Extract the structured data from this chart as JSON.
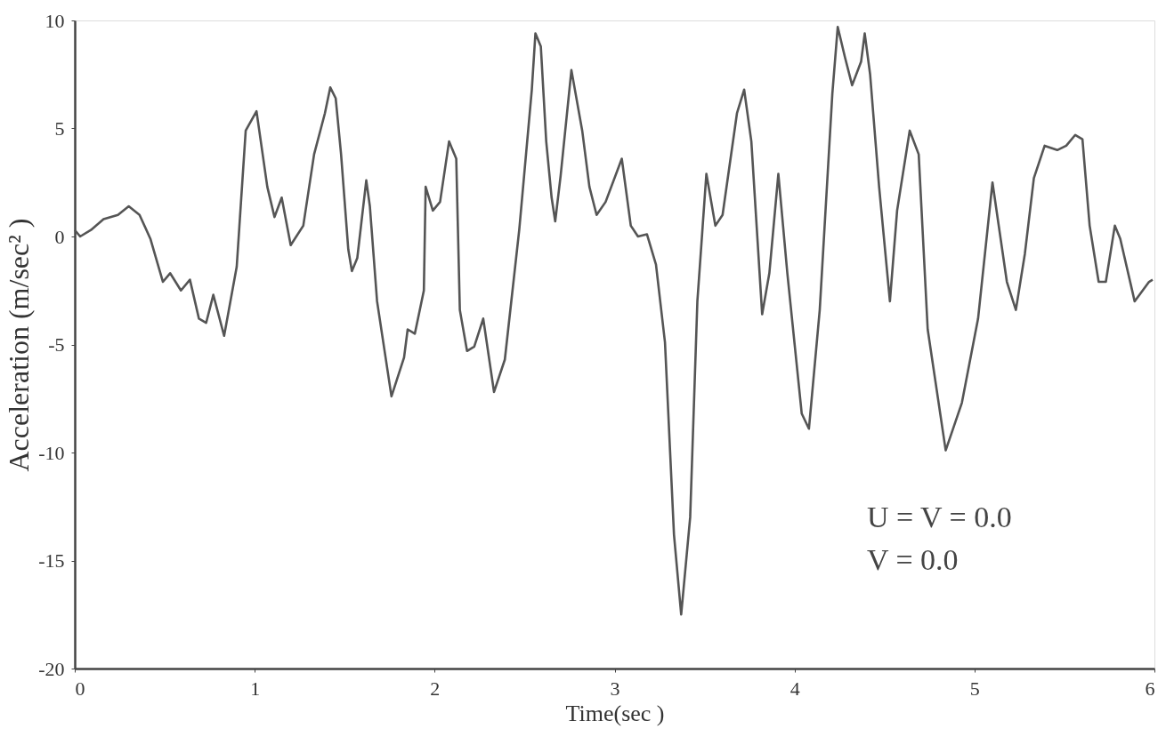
{
  "chart_data": {
    "type": "line",
    "xlabel": "Time(sec )",
    "ylabel": "Acceleration (m/sec² )",
    "xlim": [
      0,
      6
    ],
    "ylim": [
      -20,
      10
    ],
    "xticks": [
      0,
      1,
      2,
      3,
      4,
      5,
      6
    ],
    "yticks": [
      -20,
      -15,
      -10,
      -5,
      0,
      5,
      10
    ],
    "grid": false,
    "marker": "none",
    "line_style": "solid",
    "annotations": [
      "U = V = 0.0",
      "V = 0.0"
    ],
    "series": [
      {
        "color": "#555555",
        "x": [
          0,
          0.03,
          0.09,
          0.16,
          0.24,
          0.3,
          0.36,
          0.42,
          0.49,
          0.53,
          0.59,
          0.64,
          0.69,
          0.73,
          0.77,
          0.83,
          0.9,
          0.95,
          1.01,
          1.07,
          1.11,
          1.15,
          1.2,
          1.27,
          1.33,
          1.39,
          1.42,
          1.45,
          1.48,
          1.52,
          1.54,
          1.57,
          1.62,
          1.64,
          1.68,
          1.76,
          1.83,
          1.85,
          1.89,
          1.94,
          1.95,
          1.99,
          2.03,
          2.08,
          2.12,
          2.14,
          2.18,
          2.22,
          2.27,
          2.33,
          2.39,
          2.47,
          2.54,
          2.56,
          2.59,
          2.62,
          2.65,
          2.67,
          2.7,
          2.76,
          2.82,
          2.86,
          2.9,
          2.95,
          3.04,
          3.09,
          3.13,
          3.18,
          3.23,
          3.28,
          3.33,
          3.37,
          3.42,
          3.46,
          3.51,
          3.56,
          3.6,
          3.68,
          3.72,
          3.76,
          3.82,
          3.86,
          3.91,
          3.96,
          4.04,
          4.08,
          4.14,
          4.21,
          4.24,
          4.28,
          4.32,
          4.37,
          4.39,
          4.42,
          4.47,
          4.53,
          4.57,
          4.64,
          4.69,
          4.74,
          4.84,
          4.93,
          5.02,
          5.1,
          5.18,
          5.23,
          5.28,
          5.33,
          5.39,
          5.46,
          5.51,
          5.56,
          5.6,
          5.64,
          5.69,
          5.73,
          5.78,
          5.81,
          5.89,
          5.97,
          5.99
        ],
        "values": [
          0.3,
          0,
          0.3,
          0.8,
          1.0,
          1.4,
          1.0,
          -0.1,
          -2.1,
          -1.7,
          -2.5,
          -2.0,
          -3.8,
          -4.0,
          -2.7,
          -4.6,
          -1.4,
          4.9,
          5.8,
          2.3,
          0.9,
          1.8,
          -0.4,
          0.5,
          3.8,
          5.7,
          6.9,
          6.4,
          3.8,
          -0.6,
          -1.6,
          -1.0,
          2.6,
          1.4,
          -3.0,
          -7.4,
          -5.6,
          -4.3,
          -4.5,
          -2.5,
          2.3,
          1.2,
          1.6,
          4.4,
          3.6,
          -3.4,
          -5.3,
          -5.1,
          -3.8,
          -7.2,
          -5.7,
          0.3,
          6.8,
          9.4,
          8.8,
          4.4,
          1.8,
          0.7,
          2.8,
          7.7,
          4.9,
          2.3,
          1.0,
          1.6,
          3.6,
          0.5,
          0,
          0.1,
          -1.3,
          -4.9,
          -13.8,
          -17.5,
          -13.0,
          -3.0,
          2.9,
          0.5,
          1.0,
          5.7,
          6.8,
          4.4,
          -3.6,
          -1.7,
          2.9,
          -1.7,
          -8.2,
          -8.9,
          -3.4,
          6.6,
          9.7,
          8.3,
          7.0,
          8.1,
          9.4,
          7.5,
          2.3,
          -3.0,
          1.2,
          4.9,
          3.8,
          -4.3,
          -9.9,
          -7.7,
          -3.8,
          2.5,
          -2.1,
          -3.4,
          -0.8,
          2.7,
          4.2,
          4.0,
          4.2,
          4.7,
          4.5,
          0.5,
          -2.1,
          -2.1,
          0.5,
          -0.1,
          -3.0,
          -2.1,
          -2.0
        ]
      }
    ]
  }
}
